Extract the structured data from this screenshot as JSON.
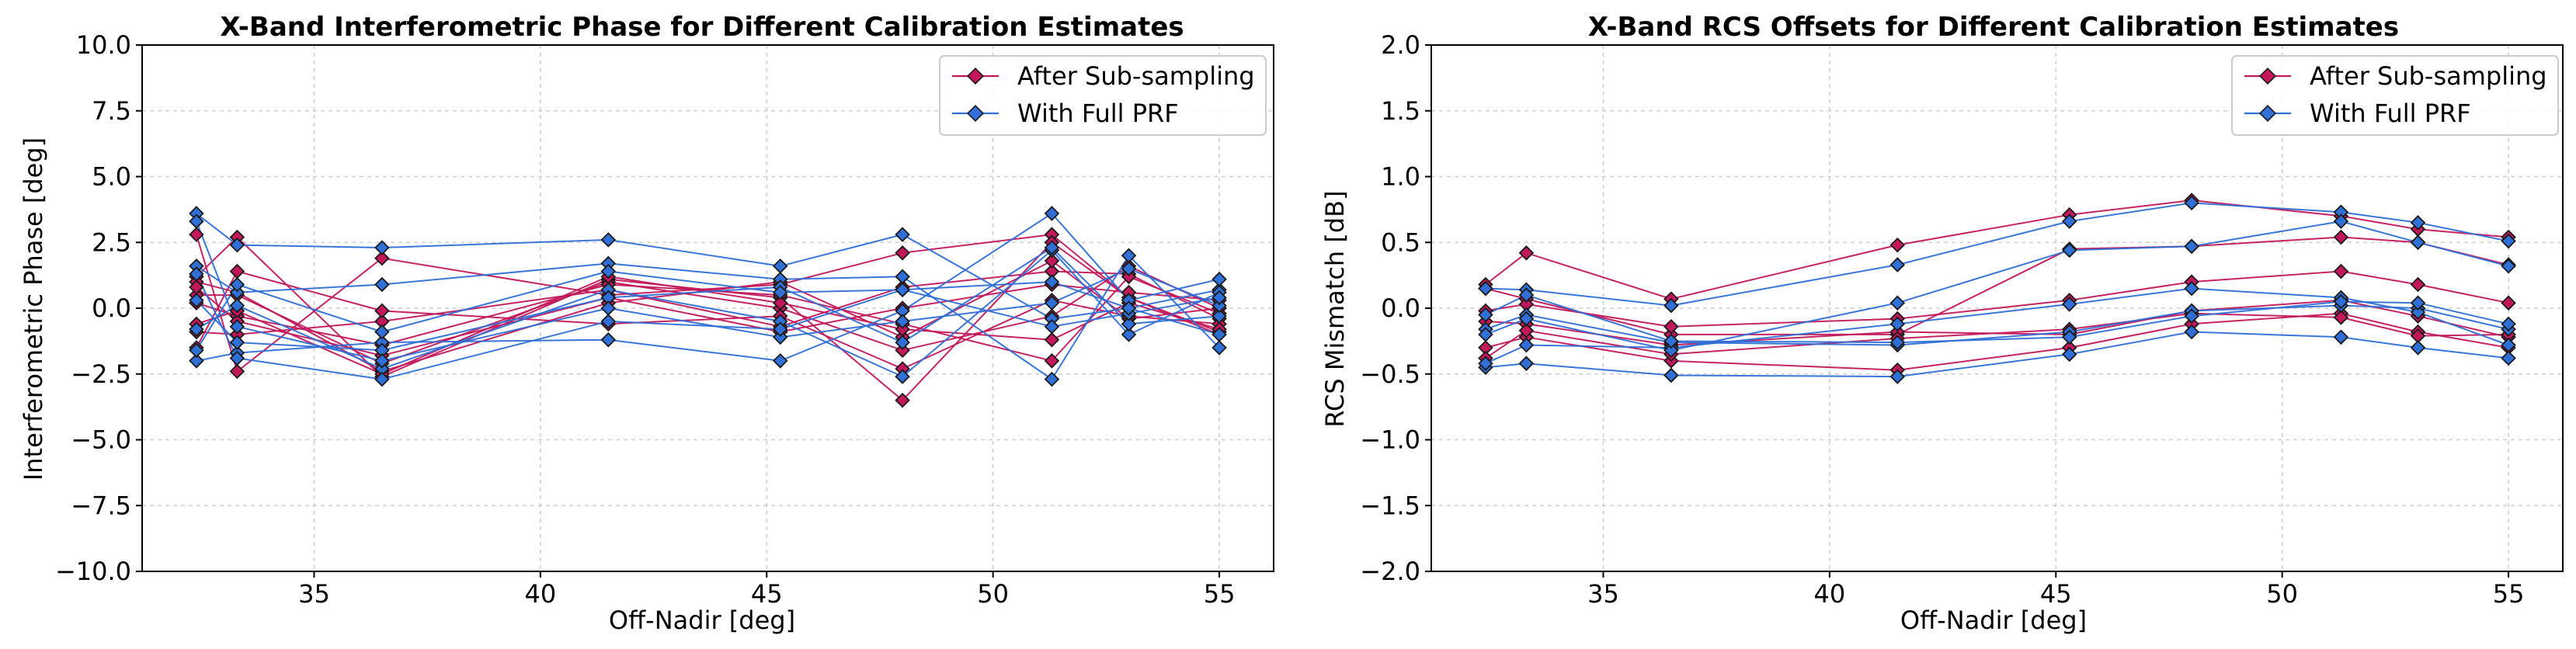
{
  "colors": {
    "after": "#c2185b",
    "full": "#2f6fd6",
    "marker_edge": "#1a1a1a"
  },
  "chart_data": [
    {
      "type": "line",
      "title": "X-Band Interferometric Phase for Different Calibration Estimates",
      "xlabel": "Off-Nadir [deg]",
      "ylabel": "Interferometric Phase [deg]",
      "xlim": [
        31.2,
        56.2
      ],
      "ylim": [
        -10.0,
        10.0
      ],
      "xticks": [
        35,
        40,
        45,
        50,
        55
      ],
      "xtick_labels": [
        "35",
        "40",
        "45",
        "50",
        "55"
      ],
      "yticks": [
        -10,
        -7.5,
        -5,
        -2.5,
        0,
        2.5,
        5,
        7.5,
        10
      ],
      "ytick_labels": [
        "−10.0",
        "−7.5",
        "−5.0",
        "−2.5",
        "0.0",
        "2.5",
        "5.0",
        "7.5",
        "10.0"
      ],
      "grid": true,
      "legend": {
        "position": "top-right",
        "entries": [
          "After Sub-sampling",
          "With Full PRF"
        ]
      },
      "x": [
        32.4,
        33.3,
        36.5,
        41.5,
        45.3,
        48.0,
        51.3,
        53.0,
        55.0
      ],
      "series": [
        {
          "name": "After Sub-sampling",
          "group": "after",
          "values": [
            2.8,
            -2.4,
            1.9,
            0.5,
            0.9,
            2.1,
            2.8,
            0.4,
            -1.0
          ]
        },
        {
          "name": "After Sub-sampling",
          "group": "after",
          "values": [
            1.2,
            2.7,
            -2.6,
            1.1,
            0.4,
            -3.5,
            2.5,
            0.4,
            -0.9
          ]
        },
        {
          "name": "After Sub-sampling",
          "group": "after",
          "values": [
            0.5,
            0.5,
            -2.1,
            1.0,
            0.0,
            -1.6,
            -0.3,
            1.6,
            0.0
          ]
        },
        {
          "name": "After Sub-sampling",
          "group": "after",
          "values": [
            -0.9,
            -1.0,
            -0.5,
            0.7,
            -0.7,
            0.8,
            1.4,
            1.3,
            -0.4
          ]
        },
        {
          "name": "After Sub-sampling",
          "group": "after",
          "values": [
            1.0,
            0.6,
            -2.4,
            0.2,
            1.0,
            -1.1,
            1.8,
            -0.4,
            0.0
          ]
        },
        {
          "name": "After Sub-sampling",
          "group": "after",
          "values": [
            0.2,
            -0.3,
            -1.4,
            0.9,
            0.5,
            -0.6,
            -2.0,
            1.2,
            -0.2
          ]
        },
        {
          "name": "After Sub-sampling",
          "group": "after",
          "values": [
            -1.5,
            1.4,
            -0.1,
            -0.6,
            -0.3,
            -2.3,
            0.3,
            -0.3,
            -0.6
          ]
        },
        {
          "name": "After Sub-sampling",
          "group": "after",
          "values": [
            0.8,
            -0.5,
            -1.8,
            0.4,
            -0.9,
            0.0,
            0.9,
            0.6,
            0.3
          ]
        },
        {
          "name": "After Sub-sampling",
          "group": "after",
          "values": [
            -0.6,
            -0.1,
            -2.5,
            1.2,
            0.2,
            -0.8,
            -1.2,
            0.2,
            -0.8
          ]
        },
        {
          "name": "With Full PRF",
          "group": "full",
          "values": [
            3.6,
            2.4,
            2.3,
            2.6,
            1.6,
            2.8,
            -0.4,
            0.0,
            0.7
          ]
        },
        {
          "name": "With Full PRF",
          "group": "full",
          "values": [
            -2.0,
            -1.7,
            -1.3,
            -1.2,
            -2.0,
            -0.1,
            3.6,
            0.3,
            1.1
          ]
        },
        {
          "name": "With Full PRF",
          "group": "full",
          "values": [
            1.6,
            0.6,
            0.9,
            1.7,
            1.1,
            1.2,
            -2.7,
            2.0,
            -1.5
          ]
        },
        {
          "name": "With Full PRF",
          "group": "full",
          "values": [
            -0.8,
            0.1,
            -2.3,
            0.7,
            -0.5,
            -2.6,
            2.2,
            -1.0,
            0.6
          ]
        },
        {
          "name": "With Full PRF",
          "group": "full",
          "values": [
            0.3,
            -1.3,
            -1.6,
            0.4,
            0.8,
            -1.3,
            2.3,
            -0.6,
            -0.3
          ]
        },
        {
          "name": "With Full PRF",
          "group": "full",
          "values": [
            3.3,
            -0.7,
            -2.0,
            0.0,
            -1.1,
            -0.5,
            0.2,
            1.5,
            0.1
          ]
        },
        {
          "name": "With Full PRF",
          "group": "full",
          "values": [
            -1.6,
            0.9,
            -0.9,
            1.4,
            0.6,
            0.7,
            -0.7,
            -0.2,
            0.4
          ]
        },
        {
          "name": "With Full PRF",
          "group": "full",
          "values": [
            1.3,
            -1.9,
            -2.7,
            -0.5,
            -0.8,
            0.7,
            1.0,
            0.0,
            -1.0
          ]
        }
      ]
    },
    {
      "type": "line",
      "title": "X-Band RCS Offsets for Different Calibration Estimates",
      "xlabel": "Off-Nadir [deg]",
      "ylabel": "RCS Mismatch [dB]",
      "xlim": [
        31.2,
        56.2
      ],
      "ylim": [
        -2.0,
        2.0
      ],
      "xticks": [
        35,
        40,
        45,
        50,
        55
      ],
      "xtick_labels": [
        "35",
        "40",
        "45",
        "50",
        "55"
      ],
      "yticks": [
        -2,
        -1.5,
        -1,
        -0.5,
        0,
        0.5,
        1,
        1.5,
        2
      ],
      "ytick_labels": [
        "−2.0",
        "−1.5",
        "−1.0",
        "−0.5",
        "0.0",
        "0.5",
        "1.0",
        "1.5",
        "2.0"
      ],
      "grid": true,
      "legend": {
        "position": "top-right",
        "entries": [
          "After Sub-sampling",
          "With Full PRF"
        ]
      },
      "x": [
        32.4,
        33.3,
        36.5,
        41.5,
        45.3,
        48.0,
        51.3,
        53.0,
        55.0
      ],
      "series": [
        {
          "name": "After Sub-sampling",
          "group": "after",
          "values": [
            0.18,
            0.42,
            0.07,
            0.48,
            0.71,
            0.82,
            0.7,
            0.6,
            0.54
          ]
        },
        {
          "name": "After Sub-sampling",
          "group": "after",
          "values": [
            0.15,
            0.07,
            -0.2,
            -0.2,
            0.45,
            0.47,
            0.54,
            0.5,
            0.33
          ]
        },
        {
          "name": "After Sub-sampling",
          "group": "after",
          "values": [
            -0.02,
            0.03,
            -0.14,
            -0.08,
            0.06,
            0.2,
            0.28,
            0.18,
            0.04
          ]
        },
        {
          "name": "After Sub-sampling",
          "group": "after",
          "values": [
            -0.1,
            -0.12,
            -0.28,
            -0.18,
            -0.2,
            -0.02,
            0.06,
            -0.06,
            -0.22
          ]
        },
        {
          "name": "After Sub-sampling",
          "group": "after",
          "values": [
            -0.3,
            -0.22,
            -0.4,
            -0.47,
            -0.3,
            -0.12,
            -0.04,
            -0.18,
            -0.3
          ]
        },
        {
          "name": "After Sub-sampling",
          "group": "after",
          "values": [
            -0.38,
            -0.17,
            -0.35,
            -0.23,
            -0.16,
            -0.04,
            -0.07,
            -0.21,
            -0.2
          ]
        },
        {
          "name": "With Full PRF",
          "group": "full",
          "values": [
            0.15,
            0.14,
            0.02,
            0.33,
            0.66,
            0.8,
            0.73,
            0.65,
            0.51
          ]
        },
        {
          "name": "With Full PRF",
          "group": "full",
          "values": [
            -0.16,
            -0.05,
            -0.26,
            -0.28,
            -0.18,
            -0.02,
            0.02,
            0.0,
            -0.16
          ]
        },
        {
          "name": "With Full PRF",
          "group": "full",
          "values": [
            -0.45,
            -0.42,
            -0.51,
            -0.52,
            -0.35,
            -0.18,
            -0.22,
            -0.3,
            -0.38
          ]
        },
        {
          "name": "With Full PRF",
          "group": "full",
          "values": [
            -0.42,
            -0.28,
            -0.3,
            -0.12,
            0.03,
            0.15,
            0.08,
            -0.03,
            -0.28
          ]
        },
        {
          "name": "With Full PRF",
          "group": "full",
          "values": [
            -0.2,
            -0.08,
            -0.32,
            0.04,
            0.44,
            0.47,
            0.66,
            0.5,
            0.32
          ]
        },
        {
          "name": "With Full PRF",
          "group": "full",
          "values": [
            -0.05,
            0.1,
            -0.25,
            -0.26,
            -0.22,
            -0.06,
            0.05,
            0.04,
            -0.12
          ]
        }
      ]
    }
  ]
}
